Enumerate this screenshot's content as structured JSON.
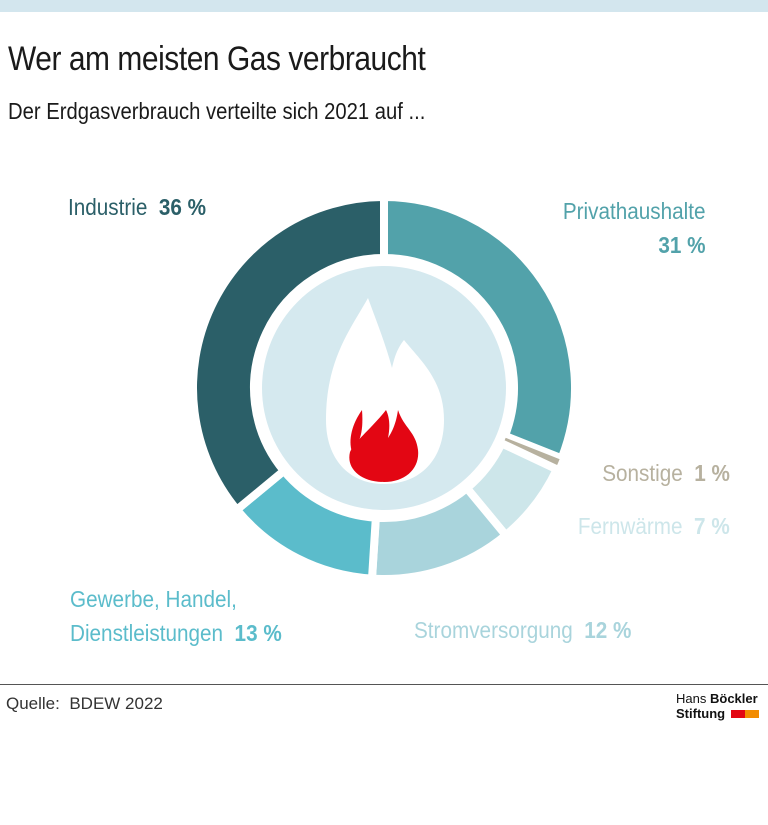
{
  "title": "Wer am meisten Gas verbraucht",
  "subtitle": "Der Erdgasverbrauch verteilte sich 2021 auf ...",
  "chart_data": {
    "type": "pie",
    "donut": true,
    "unit": "%",
    "slices": [
      {
        "label": "Privathaushalte",
        "value": 31,
        "value_label": "31 %",
        "color": "#52a2aa"
      },
      {
        "label": "Sonstige",
        "value": 1,
        "value_label": "1 %",
        "color": "#b7b19f"
      },
      {
        "label": "Fernwärme",
        "value": 7,
        "value_label": "7 %",
        "color": "#cde6ea"
      },
      {
        "label": "Stromversorgung",
        "value": 12,
        "value_label": "12 %",
        "color": "#a9d4dc"
      },
      {
        "label": "Gewerbe, Handel, Dienstleistungen",
        "label_lines": [
          "Gewerbe, Handel,",
          "Dienstleistungen"
        ],
        "value": 13,
        "value_label": "13 %",
        "color": "#5bbccb"
      },
      {
        "label": "Industrie",
        "value": 36,
        "value_label": "36 %",
        "color": "#2b5f68"
      }
    ],
    "center_icon": "flame-icon"
  },
  "source": {
    "label": "Quelle:",
    "value": "BDEW 2022"
  },
  "logo": {
    "line1a": "Hans",
    "line1b": "Böckler",
    "line2": "Stiftung",
    "colors": [
      "#e30613",
      "#f28c00"
    ]
  }
}
